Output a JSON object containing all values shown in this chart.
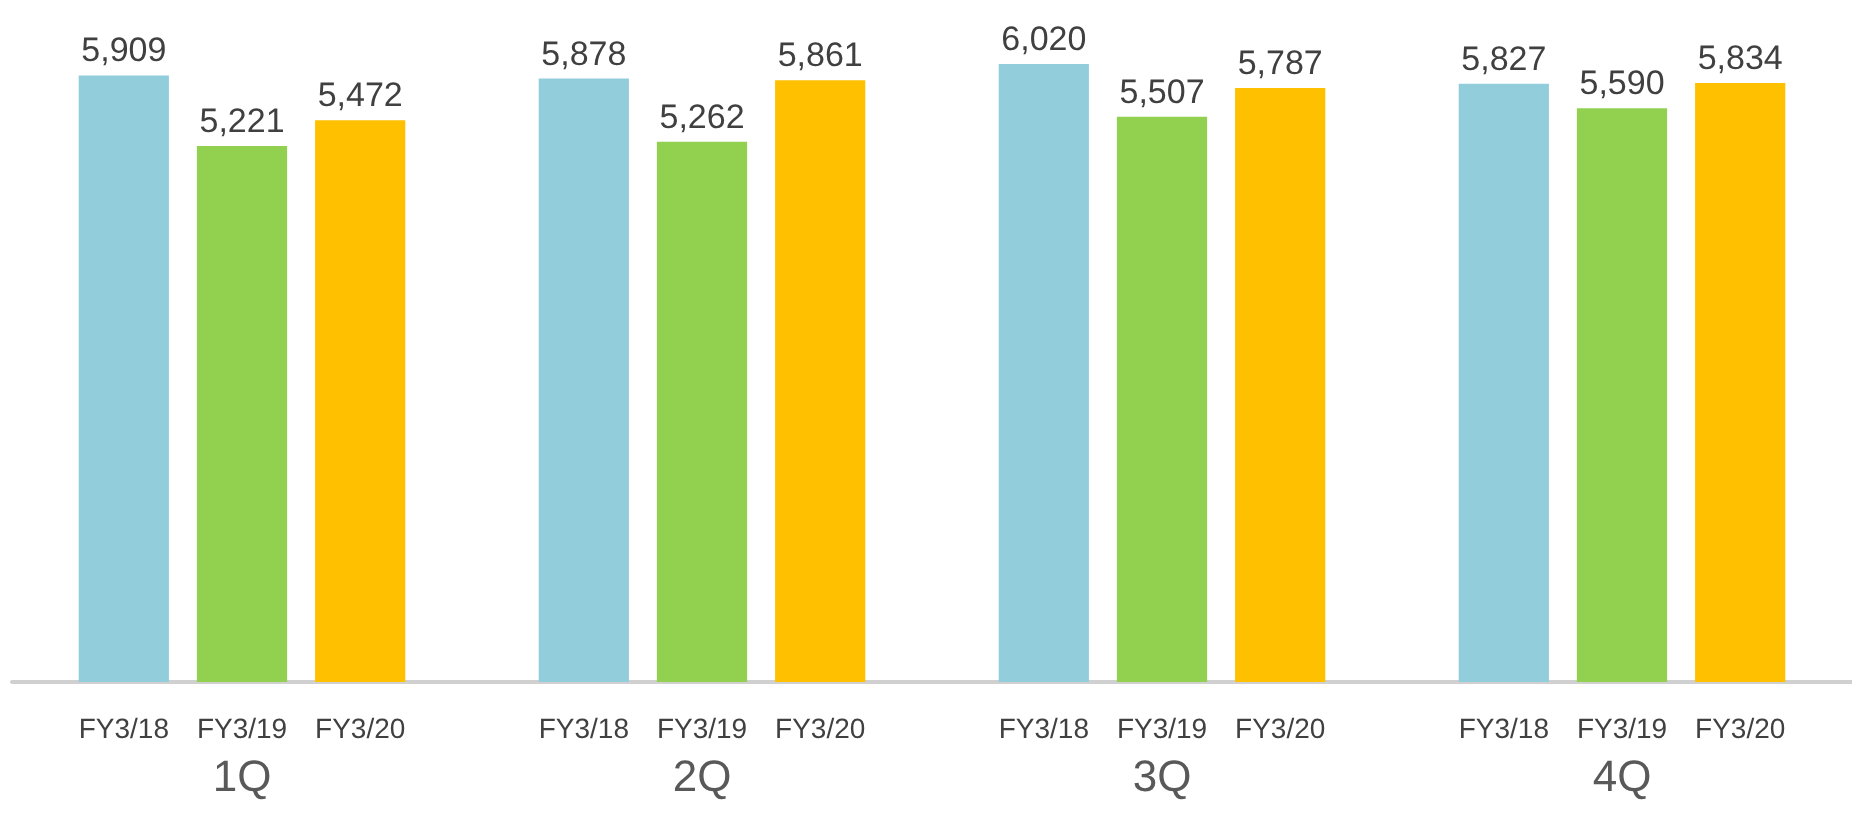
{
  "chart_data": {
    "type": "bar",
    "categories": [
      "1Q",
      "2Q",
      "3Q",
      "4Q"
    ],
    "series": [
      {
        "name": "FY3/18",
        "color": "#92cddc",
        "values": [
          5909,
          5878,
          6020,
          5827
        ],
        "value_labels": [
          "5,909",
          "5,878",
          "6,020",
          "5,827"
        ]
      },
      {
        "name": "FY3/19",
        "color": "#92d050",
        "values": [
          5221,
          5262,
          5507,
          5590
        ],
        "value_labels": [
          "5,221",
          "5,262",
          "5,507",
          "5,590"
        ]
      },
      {
        "name": "FY3/20",
        "color": "#ffc000",
        "values": [
          5472,
          5861,
          5787,
          5834
        ],
        "value_labels": [
          "5,472",
          "5,861",
          "5,787",
          "5,834"
        ]
      }
    ],
    "legend": false,
    "grid": false
  }
}
